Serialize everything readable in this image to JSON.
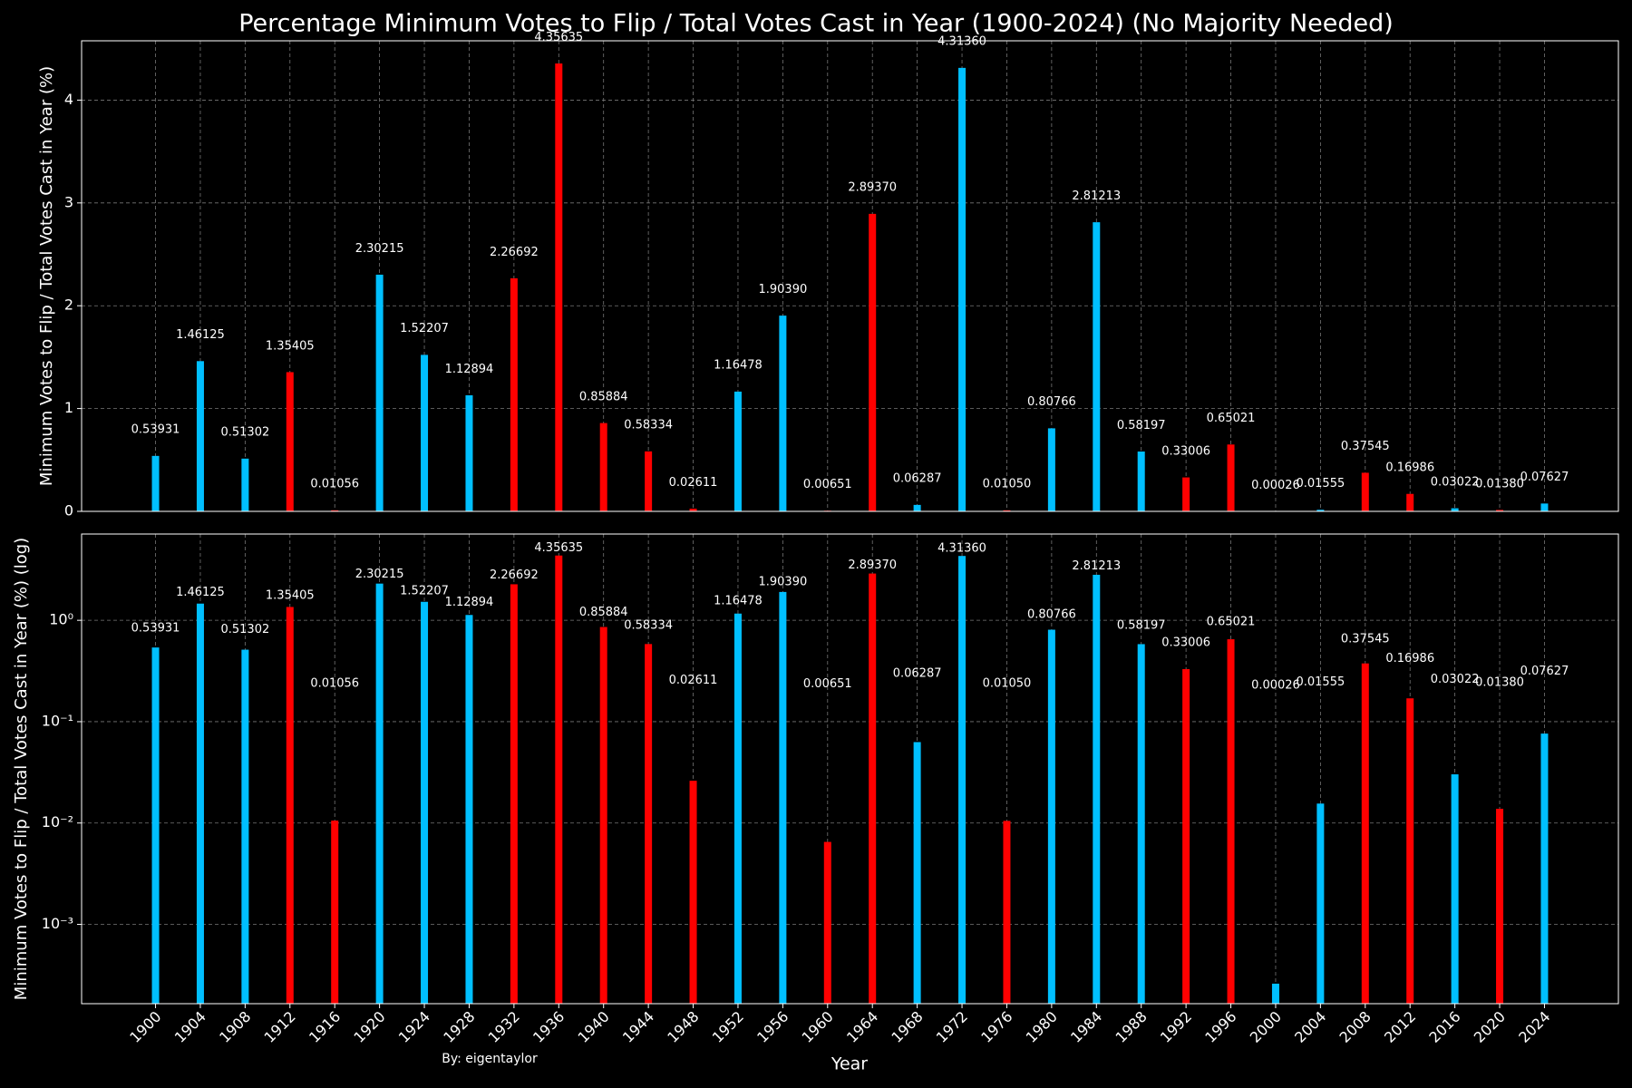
{
  "chart_data": [
    {
      "type": "bar",
      "title": "Percentage Minimum Votes to Flip / Total Votes Cast in Year (1900-2024) (No Majority Needed)",
      "ylabel": "Minimum Votes to Flip / Total Votes Cast in Year (%)",
      "values": [
        0.53931,
        1.46125,
        0.51302,
        1.35405,
        0.01056,
        2.30215,
        1.52207,
        1.12894,
        2.26692,
        4.35635,
        0.85884,
        0.58334,
        0.02611,
        1.16478,
        1.9039,
        0.00651,
        2.8937,
        0.06287,
        4.3136,
        0.0105,
        0.80766,
        2.81213,
        0.58197,
        0.33006,
        0.65021,
        0.00026,
        0.01555,
        0.37545,
        0.16986,
        0.03022,
        0.0138,
        0.07627
      ],
      "value_labels": [
        "0.53931",
        "1.46125",
        "0.51302",
        "1.35405",
        "0.01056",
        "2.30215",
        "1.52207",
        "1.12894",
        "2.26692",
        "4.35635",
        "0.85884",
        "0.58334",
        "0.02611",
        "1.16478",
        "1.90390",
        "0.00651",
        "2.89370",
        "0.06287",
        "4.31360",
        "0.01050",
        "0.80766",
        "2.81213",
        "0.58197",
        "0.33006",
        "0.65021",
        "0.00026",
        "0.01555",
        "0.37545",
        "0.16986",
        "0.03022",
        "0.01380",
        "0.07627"
      ],
      "colors": [
        "#00bfff",
        "#00bfff",
        "#00bfff",
        "#ff0000",
        "#ff0000",
        "#00bfff",
        "#00bfff",
        "#00bfff",
        "#ff0000",
        "#ff0000",
        "#ff0000",
        "#ff0000",
        "#ff0000",
        "#00bfff",
        "#00bfff",
        "#ff0000",
        "#ff0000",
        "#00bfff",
        "#00bfff",
        "#ff0000",
        "#00bfff",
        "#00bfff",
        "#00bfff",
        "#ff0000",
        "#ff0000",
        "#00bfff",
        "#00bfff",
        "#ff0000",
        "#ff0000",
        "#00bfff",
        "#ff0000",
        "#00bfff"
      ],
      "ylim": [
        0,
        4.577
      ],
      "yticks": [
        0,
        1,
        2,
        3,
        4
      ],
      "grid": true,
      "log_scale": false
    },
    {
      "type": "bar",
      "ylabel": "Minimum Votes to Flip / Total Votes Cast in Year (%) (log)",
      "xlabel": "Year",
      "annotation": "By: eigentaylor",
      "categories": [
        "1900",
        "1904",
        "1908",
        "1912",
        "1916",
        "1920",
        "1924",
        "1928",
        "1932",
        "1936",
        "1940",
        "1944",
        "1948",
        "1952",
        "1956",
        "1960",
        "1964",
        "1968",
        "1972",
        "1976",
        "1980",
        "1984",
        "1988",
        "1992",
        "1996",
        "2000",
        "2004",
        "2008",
        "2012",
        "2016",
        "2020",
        "2024"
      ],
      "values": [
        0.53931,
        1.46125,
        0.51302,
        1.35405,
        0.01056,
        2.30215,
        1.52207,
        1.12894,
        2.26692,
        4.35635,
        0.85884,
        0.58334,
        0.02611,
        1.16478,
        1.9039,
        0.00651,
        2.8937,
        0.06287,
        4.3136,
        0.0105,
        0.80766,
        2.81213,
        0.58197,
        0.33006,
        0.65021,
        0.00026,
        0.01555,
        0.37545,
        0.16986,
        0.03022,
        0.0138,
        0.07627
      ],
      "value_labels": [
        "0.53931",
        "1.46125",
        "0.51302",
        "1.35405",
        "0.01056",
        "2.30215",
        "1.52207",
        "1.12894",
        "2.26692",
        "4.35635",
        "0.85884",
        "0.58334",
        "0.02611",
        "1.16478",
        "1.90390",
        "0.00651",
        "2.89370",
        "0.06287",
        "4.31360",
        "0.01050",
        "0.80766",
        "2.81213",
        "0.58197",
        "0.33006",
        "0.65021",
        "0.00026",
        "0.01555",
        "0.37545",
        "0.16986",
        "0.03022",
        "0.01380",
        "0.07627"
      ],
      "colors": [
        "#00bfff",
        "#00bfff",
        "#00bfff",
        "#ff0000",
        "#ff0000",
        "#00bfff",
        "#00bfff",
        "#00bfff",
        "#ff0000",
        "#ff0000",
        "#ff0000",
        "#ff0000",
        "#ff0000",
        "#00bfff",
        "#00bfff",
        "#ff0000",
        "#ff0000",
        "#00bfff",
        "#00bfff",
        "#ff0000",
        "#00bfff",
        "#00bfff",
        "#00bfff",
        "#ff0000",
        "#ff0000",
        "#00bfff",
        "#00bfff",
        "#ff0000",
        "#ff0000",
        "#00bfff",
        "#ff0000",
        "#00bfff"
      ],
      "ylim": [
        0.000165,
        7.1
      ],
      "yticks": [
        {
          "value": 0.001,
          "label": "10⁻³"
        },
        {
          "value": 0.01,
          "label": "10⁻²"
        },
        {
          "value": 0.1,
          "label": "10⁻¹"
        },
        {
          "value": 1,
          "label": "10⁰"
        }
      ],
      "grid": true,
      "log_scale": true
    }
  ]
}
